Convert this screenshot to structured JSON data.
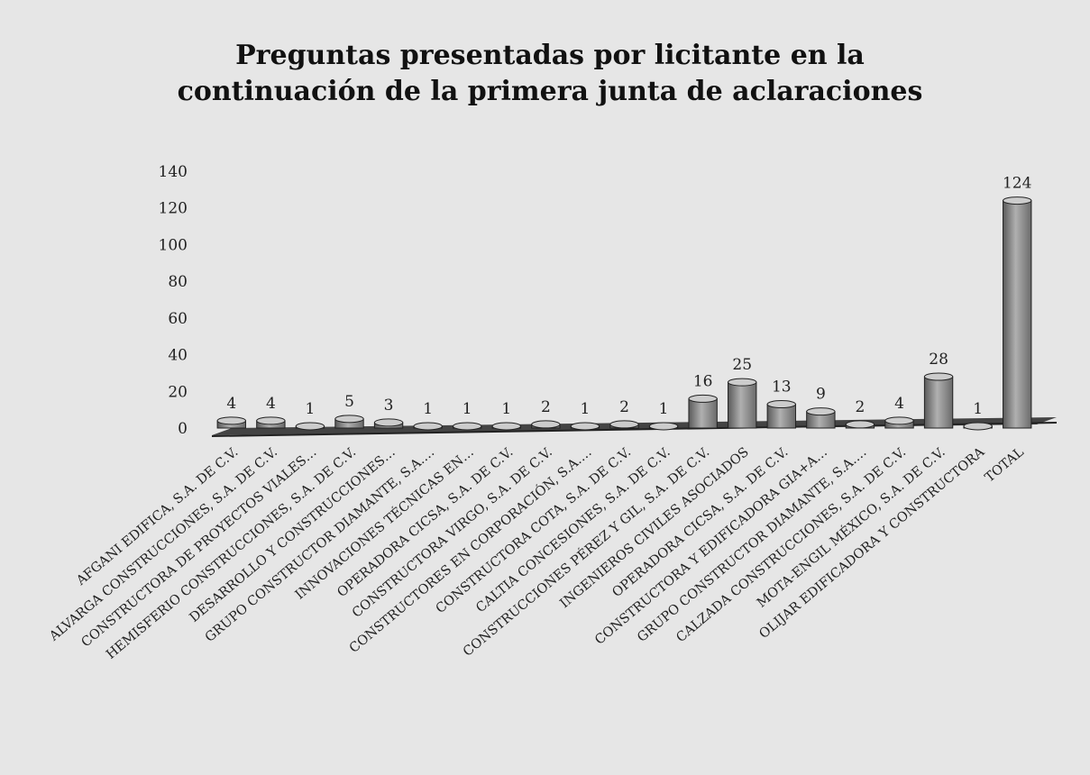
{
  "chart_data": {
    "type": "bar",
    "title": "Preguntas presentadas por licitante en la continuación de la primera junta de aclaraciones",
    "categories": [
      "AFGANI EDIFICA, S.A. DE C.V.",
      "ALVARGA CONSTRUCCIONES, S.A. DE C.V.",
      "CONSTRUCTORA DE PROYECTOS VIALES…",
      "HEMISFERIO CONSTRUCCIONES, S.A. DE C.V.",
      "DESARROLLO Y CONSTRUCCIONES…",
      "GRUPO CONSTRUCTOR DIAMANTE, S.A.…",
      "INNOVACIONES TÉCNICAS EN…",
      "OPERADORA CICSA, S.A. DE C.V.",
      "CONSTRUCTORA VIRGO, S.A. DE C.V.",
      "CONSTRUCTORES EN CORPORACIÓN, S.A.…",
      "CONSTRUCTORA COTA, S.A. DE C.V.",
      "CALTIA CONCESIONES, S.A. DE C.V.",
      "CONSTRUCCIONES PÉREZ Y GIL, S.A. DE C.V.",
      "INGENIEROS CIVILES ASOCIADOS",
      "OPERADORA CICSA, S.A. DE C.V.",
      "CONSTRUCTORA Y EDIFICADORA GIA+A…",
      "GRUPO CONSTRUCTOR DIAMANTE, S.A.…",
      "CALZADA CONSTRUCCIONES, S.A. DE C.V.",
      "MOTA-ENGIL MÉXICO, S.A. DE C.V.",
      "OLIJAR EDIFICADORA Y CONSTRUCTORA",
      "TOTAL"
    ],
    "values": [
      4,
      4,
      1,
      5,
      3,
      1,
      1,
      1,
      2,
      1,
      2,
      1,
      16,
      25,
      13,
      9,
      2,
      4,
      28,
      1,
      124
    ],
    "color": "#9a9a9a",
    "ylim": [
      0,
      140
    ],
    "yticks": [
      0,
      20,
      40,
      60,
      80,
      100,
      120,
      140
    ],
    "grid": false
  }
}
